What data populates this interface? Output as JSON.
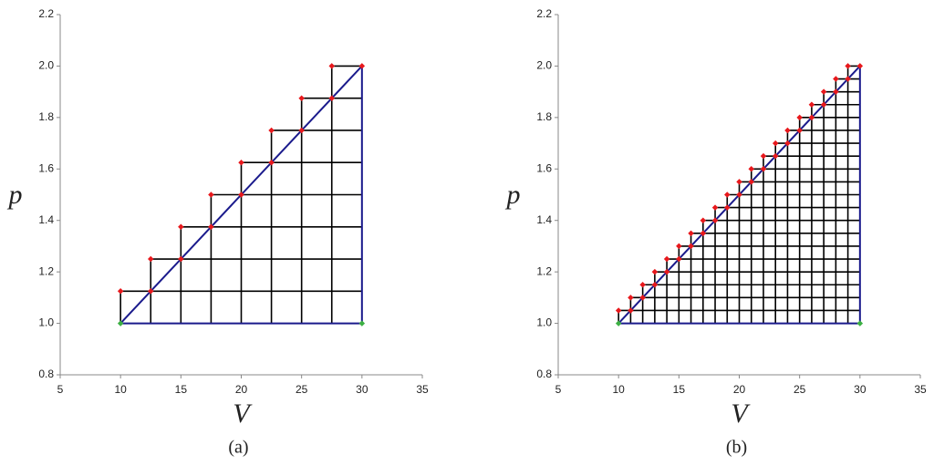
{
  "chart_data": [
    {
      "type": "scatter",
      "label": "(a)",
      "x_label": "V",
      "y_label": "p",
      "xlim": [
        5,
        35
      ],
      "ylim": [
        0.8,
        2.2
      ],
      "xticks": [
        5,
        10,
        15,
        20,
        25,
        30,
        35
      ],
      "yticks": [
        0.8,
        {
          "value": 1,
          "label": "1.0"
        },
        1.2,
        1.4,
        1.6,
        1.8,
        {
          "value": 2,
          "label": "2.0"
        },
        2.2
      ],
      "mesh_color": "#000000",
      "boundary": {
        "color": "#1a1a8c",
        "x": [
          10,
          30
        ],
        "y": [
          1,
          2
        ]
      },
      "corners": {
        "color": "#3cb043",
        "x": [
          10,
          30
        ],
        "y": [
          1,
          1
        ]
      },
      "steps": {
        "color": "#e8181c",
        "x": [
          10,
          12.5,
          15,
          17.5,
          20,
          22.5,
          25,
          27.5
        ],
        "y": [
          1.125,
          1.25,
          1.375,
          1.5,
          1.625,
          1.75,
          1.875,
          2.0
        ]
      },
      "diagonal_points": {
        "color": "#e8181c",
        "x": [
          12.5,
          15,
          17.5,
          20,
          22.5,
          25,
          27.5,
          30
        ],
        "y": [
          1.125,
          1.25,
          1.375,
          1.5,
          1.625,
          1.75,
          1.875,
          2.0
        ]
      }
    },
    {
      "type": "scatter",
      "label": "(b)",
      "x_label": "V",
      "y_label": "p",
      "xlim": [
        5,
        35
      ],
      "ylim": [
        0.8,
        2.2
      ],
      "xticks": [
        5,
        10,
        15,
        20,
        25,
        30,
        35
      ],
      "yticks": [
        0.8,
        {
          "value": 1,
          "label": "1.0"
        },
        1.2,
        1.4,
        1.6,
        1.8,
        {
          "value": 2,
          "label": "2.0"
        },
        2.2
      ],
      "mesh_color": "#000000",
      "boundary": {
        "color": "#1a1a8c",
        "x": [
          10,
          30
        ],
        "y": [
          1,
          2
        ]
      },
      "corners": {
        "color": "#3cb043",
        "x": [
          10,
          30
        ],
        "y": [
          1,
          1
        ]
      },
      "steps": {
        "color": "#e8181c",
        "x": [
          10,
          11,
          12,
          13,
          14,
          15,
          16,
          17,
          18,
          19,
          20,
          21,
          22,
          23,
          24,
          25,
          26,
          27,
          28,
          29
        ],
        "y": [
          1.05,
          1.1,
          1.15,
          1.2,
          1.25,
          1.3,
          1.35,
          1.4,
          1.45,
          1.5,
          1.55,
          1.6,
          1.65,
          1.7,
          1.75,
          1.8,
          1.85,
          1.9,
          1.95,
          2.0
        ]
      },
      "diagonal_points": {
        "color": "#e8181c",
        "x": [
          11,
          12,
          13,
          14,
          15,
          16,
          17,
          18,
          19,
          20,
          21,
          22,
          23,
          24,
          25,
          26,
          27,
          28,
          29,
          30
        ],
        "y": [
          1.05,
          1.1,
          1.15,
          1.2,
          1.25,
          1.3,
          1.35,
          1.4,
          1.45,
          1.5,
          1.55,
          1.6,
          1.65,
          1.7,
          1.75,
          1.8,
          1.85,
          1.9,
          1.95,
          2.0
        ]
      }
    }
  ]
}
